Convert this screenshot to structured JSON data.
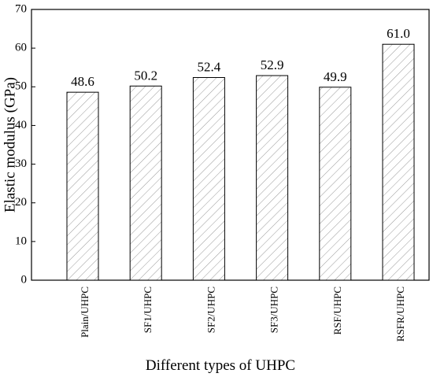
{
  "chart_data": {
    "type": "bar",
    "x_label": "Different types of UHPC",
    "y_label": "Elastic modulus (GPa)",
    "categories": [
      "Plain/UHPC",
      "SF1/UHPC",
      "SF2/UHPC",
      "SF3/UHPC",
      "RSF/UHPC",
      "RSFR/UHPC"
    ],
    "values": [
      48.6,
      50.2,
      52.4,
      52.9,
      49.9,
      61.0
    ],
    "value_labels": [
      "48.6",
      "50.2",
      "52.4",
      "52.9",
      "49.9",
      "61.0"
    ],
    "color": "#ffffff",
    "hatch_color": "#999999",
    "ylim": [
      0,
      70
    ],
    "yticks": [
      0,
      10,
      20,
      30,
      40,
      50,
      60,
      70
    ]
  }
}
